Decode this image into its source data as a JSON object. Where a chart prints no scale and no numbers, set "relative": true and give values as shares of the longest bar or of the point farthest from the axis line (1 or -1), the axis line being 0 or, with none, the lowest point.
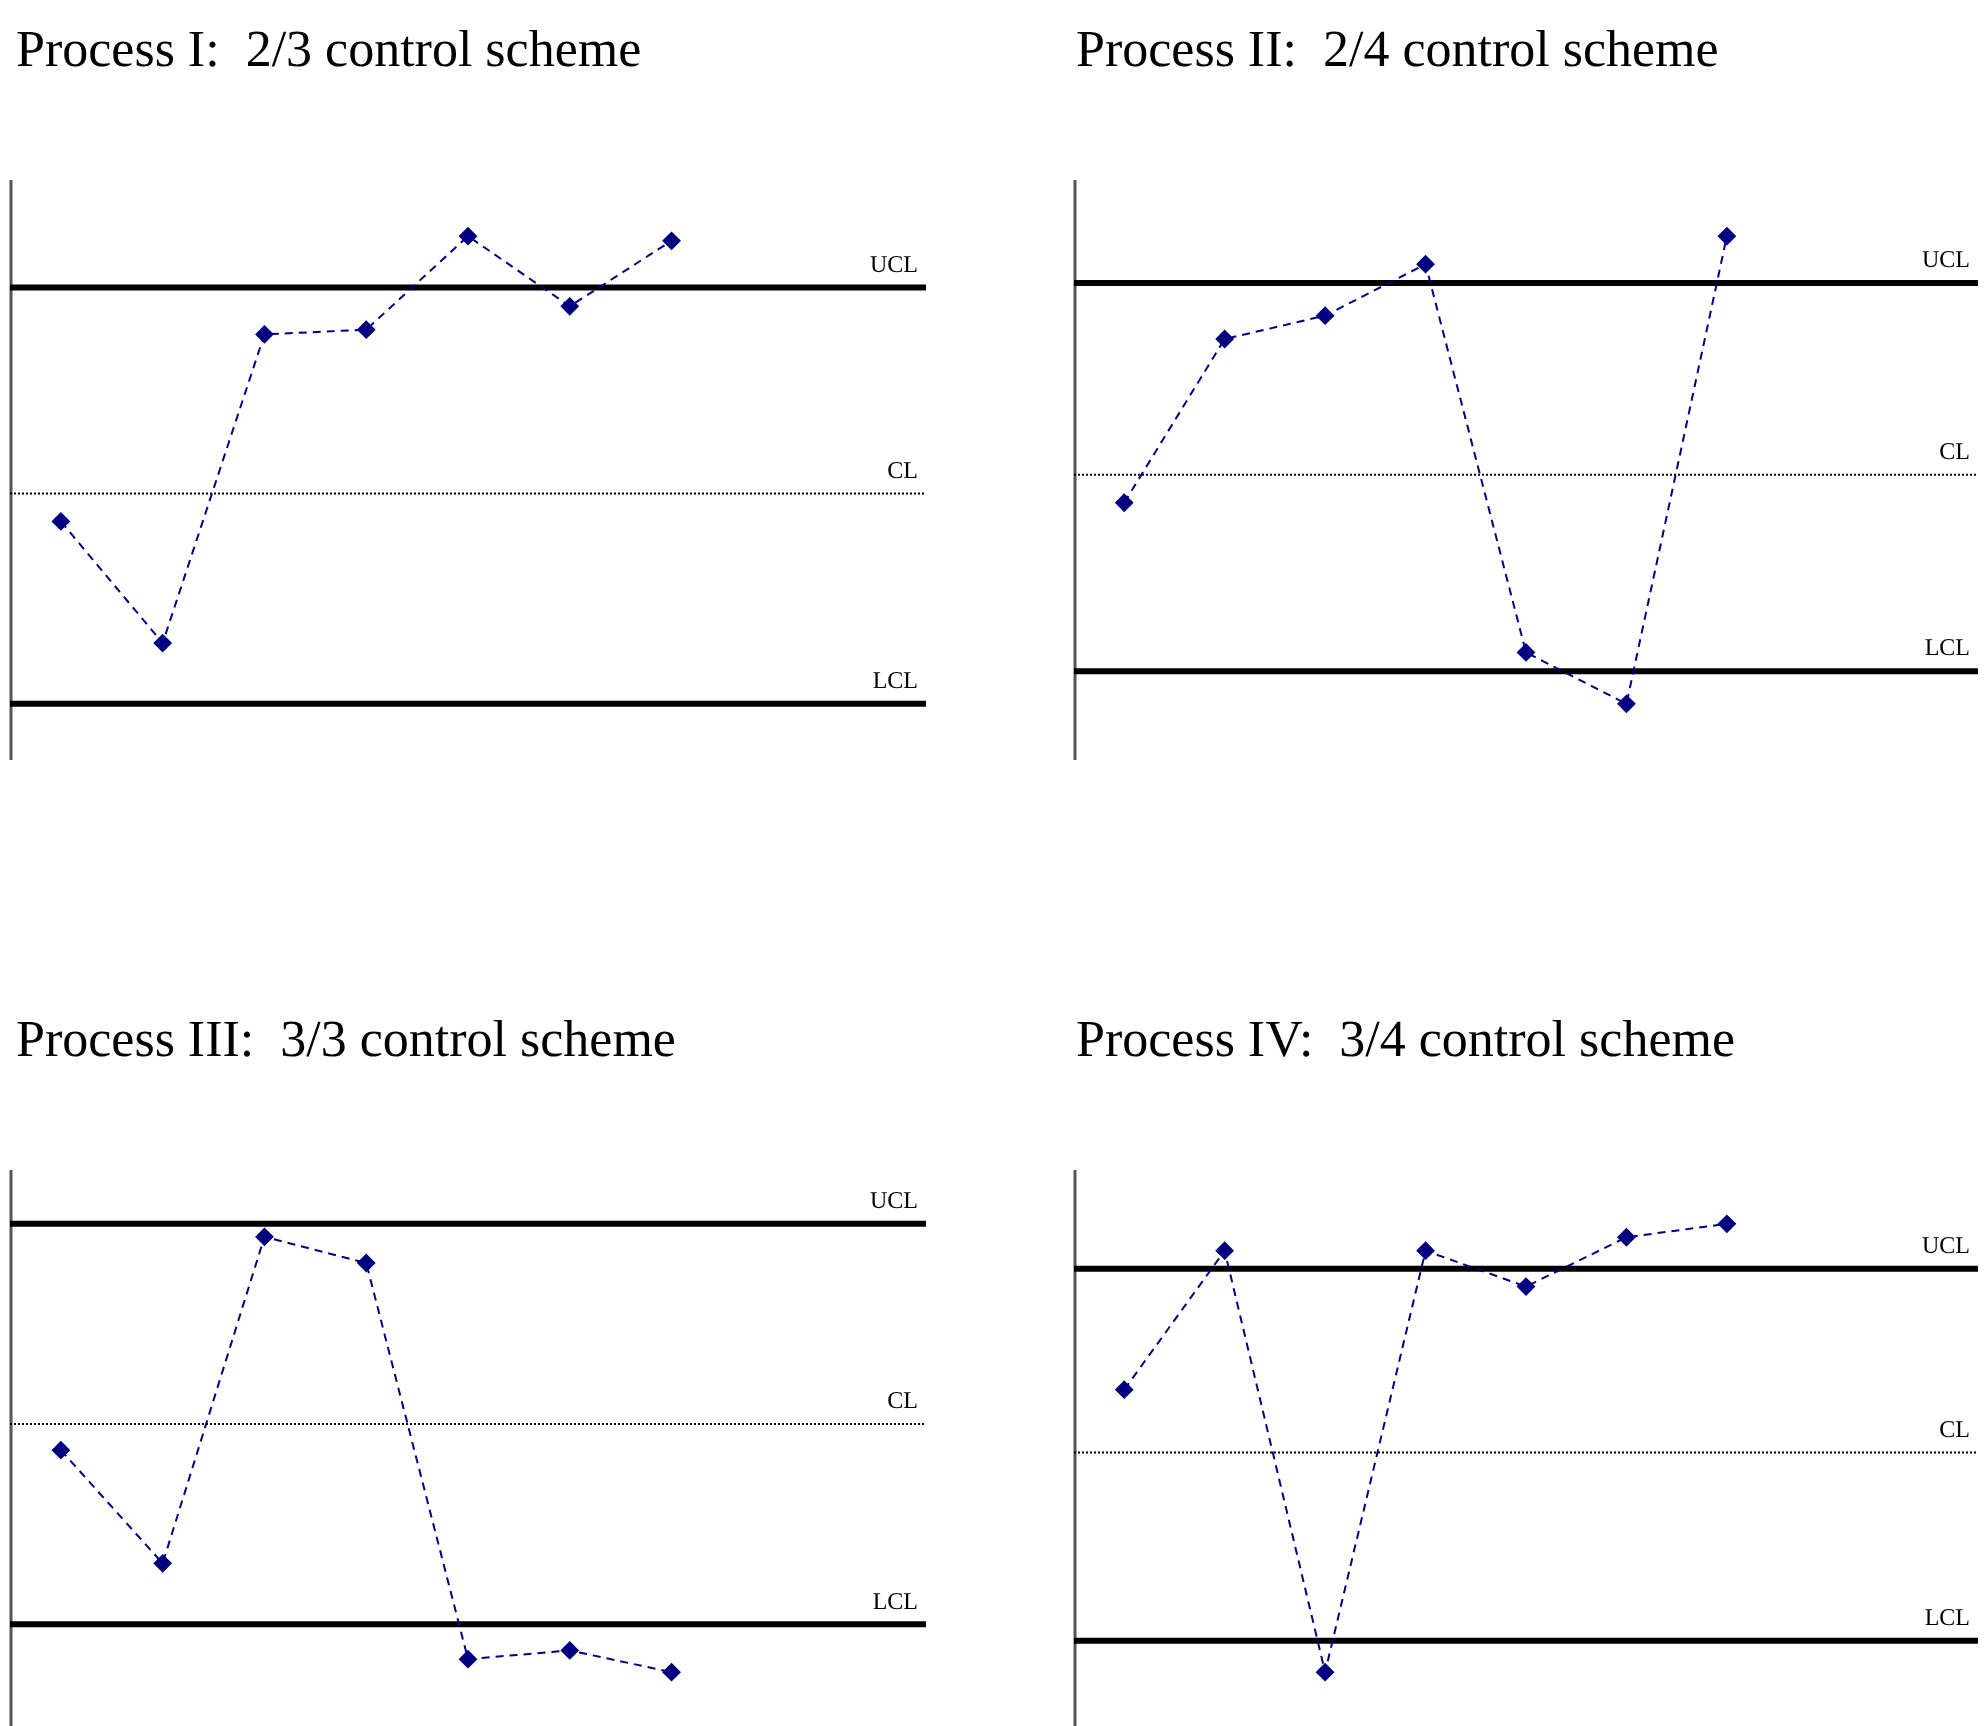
{
  "chart_data": [
    {
      "type": "line",
      "title": "Process I:  2/3 control scheme",
      "relative": true,
      "marker": "diamond",
      "line_style": "dashed",
      "categories": [
        null,
        null,
        null,
        null,
        null,
        null,
        null,
        null,
        null
      ],
      "series": [
        {
          "color": "#000080",
          "values": [
            0.39,
            0.13,
            0.79,
            0.8,
            1,
            0.85,
            0.99,
            null,
            null
          ]
        }
      ],
      "ref_lines": [
        {
          "axis": "y",
          "value": 0.89,
          "label": "UCL",
          "color": "#000000",
          "line_style": "solid"
        },
        {
          "axis": "y",
          "value": 0.45,
          "label": "CL",
          "color": "#000000",
          "line_style": "dotted"
        },
        {
          "axis": "y",
          "value": 0,
          "label": "LCL",
          "color": "#000000",
          "line_style": "solid"
        }
      ]
    },
    {
      "type": "line",
      "title": "Process II:  2/4 control scheme",
      "relative": true,
      "marker": "diamond",
      "line_style": "dashed",
      "categories": [
        null,
        null,
        null,
        null,
        null,
        null,
        null,
        null,
        null
      ],
      "series": [
        {
          "color": "#000080",
          "values": [
            0.43,
            0.78,
            0.83,
            0.94,
            0.11,
            0,
            1,
            null,
            null
          ]
        }
      ],
      "ref_lines": [
        {
          "axis": "y",
          "value": 0.9,
          "label": "UCL",
          "color": "#000000",
          "line_style": "solid"
        },
        {
          "axis": "y",
          "value": 0.49,
          "label": "CL",
          "color": "#000000",
          "line_style": "dotted"
        },
        {
          "axis": "y",
          "value": 0.07,
          "label": "LCL",
          "color": "#000000",
          "line_style": "solid"
        }
      ]
    },
    {
      "type": "line",
      "title": "Process III:  3/3 control scheme",
      "relative": true,
      "marker": "diamond",
      "line_style": "dashed",
      "categories": [
        null,
        null,
        null,
        null,
        null,
        null,
        null,
        null,
        null
      ],
      "series": [
        {
          "color": "#000080",
          "values": [
            0.51,
            0.25,
            1,
            0.94,
            0.03,
            0.05,
            0,
            null,
            null
          ]
        }
      ],
      "ref_lines": [
        {
          "axis": "y",
          "value": 1.03,
          "label": "UCL",
          "color": "#000000",
          "line_style": "solid"
        },
        {
          "axis": "y",
          "value": 0.57,
          "label": "CL",
          "color": "#000000",
          "line_style": "dotted"
        },
        {
          "axis": "y",
          "value": 0.11,
          "label": "LCL",
          "color": "#000000",
          "line_style": "solid"
        }
      ]
    },
    {
      "type": "line",
      "title": "Process IV:  3/4 control scheme",
      "relative": true,
      "marker": "diamond",
      "line_style": "dashed",
      "categories": [
        null,
        null,
        null,
        null,
        null,
        null,
        null,
        null,
        null
      ],
      "series": [
        {
          "color": "#000080",
          "values": [
            0.63,
            0.94,
            0,
            0.94,
            0.86,
            0.97,
            1,
            null,
            null
          ]
        }
      ],
      "ref_lines": [
        {
          "axis": "y",
          "value": 0.9,
          "label": "UCL",
          "color": "#000000",
          "line_style": "solid"
        },
        {
          "axis": "y",
          "value": 0.49,
          "label": "CL",
          "color": "#000000",
          "line_style": "dotted"
        },
        {
          "axis": "y",
          "value": 0.07,
          "label": "LCL",
          "color": "#000000",
          "line_style": "solid"
        }
      ]
    }
  ]
}
